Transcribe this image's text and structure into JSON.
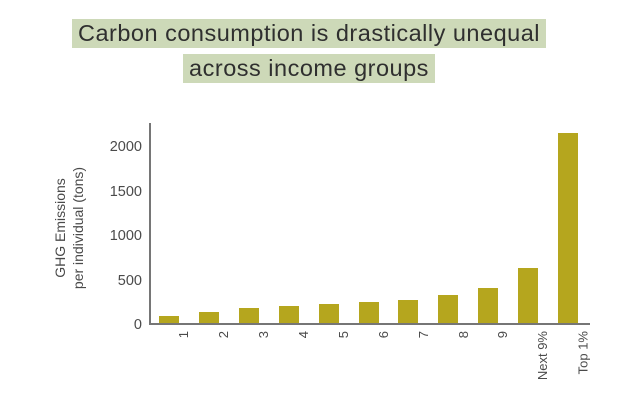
{
  "title": {
    "line1": "Carbon consumption is drastically unequal",
    "line2": "across income groups"
  },
  "chart_data": {
    "type": "bar",
    "title": "Carbon consumption is drastically unequal across income groups",
    "categories": [
      "1",
      "2",
      "3",
      "4",
      "5",
      "6",
      "7",
      "8",
      "9",
      "Next 9%",
      "Top 1%"
    ],
    "values": [
      75,
      120,
      165,
      195,
      215,
      240,
      260,
      320,
      390,
      620,
      2130
    ],
    "xlabel": "",
    "ylabel_line1": "GHG Emissions",
    "ylabel_line2": "per individual (tons)",
    "yticks": [
      0,
      500,
      1000,
      1500,
      2000
    ],
    "ylim": [
      0,
      2250
    ],
    "grid": false,
    "legend": "none",
    "bar_color": "#b5a61e",
    "axis_color": "#767676",
    "tick_text_color": "#4a4a4a",
    "title_highlight_color": "#cdd9b8",
    "title_text_color": "#2f2f2f"
  }
}
